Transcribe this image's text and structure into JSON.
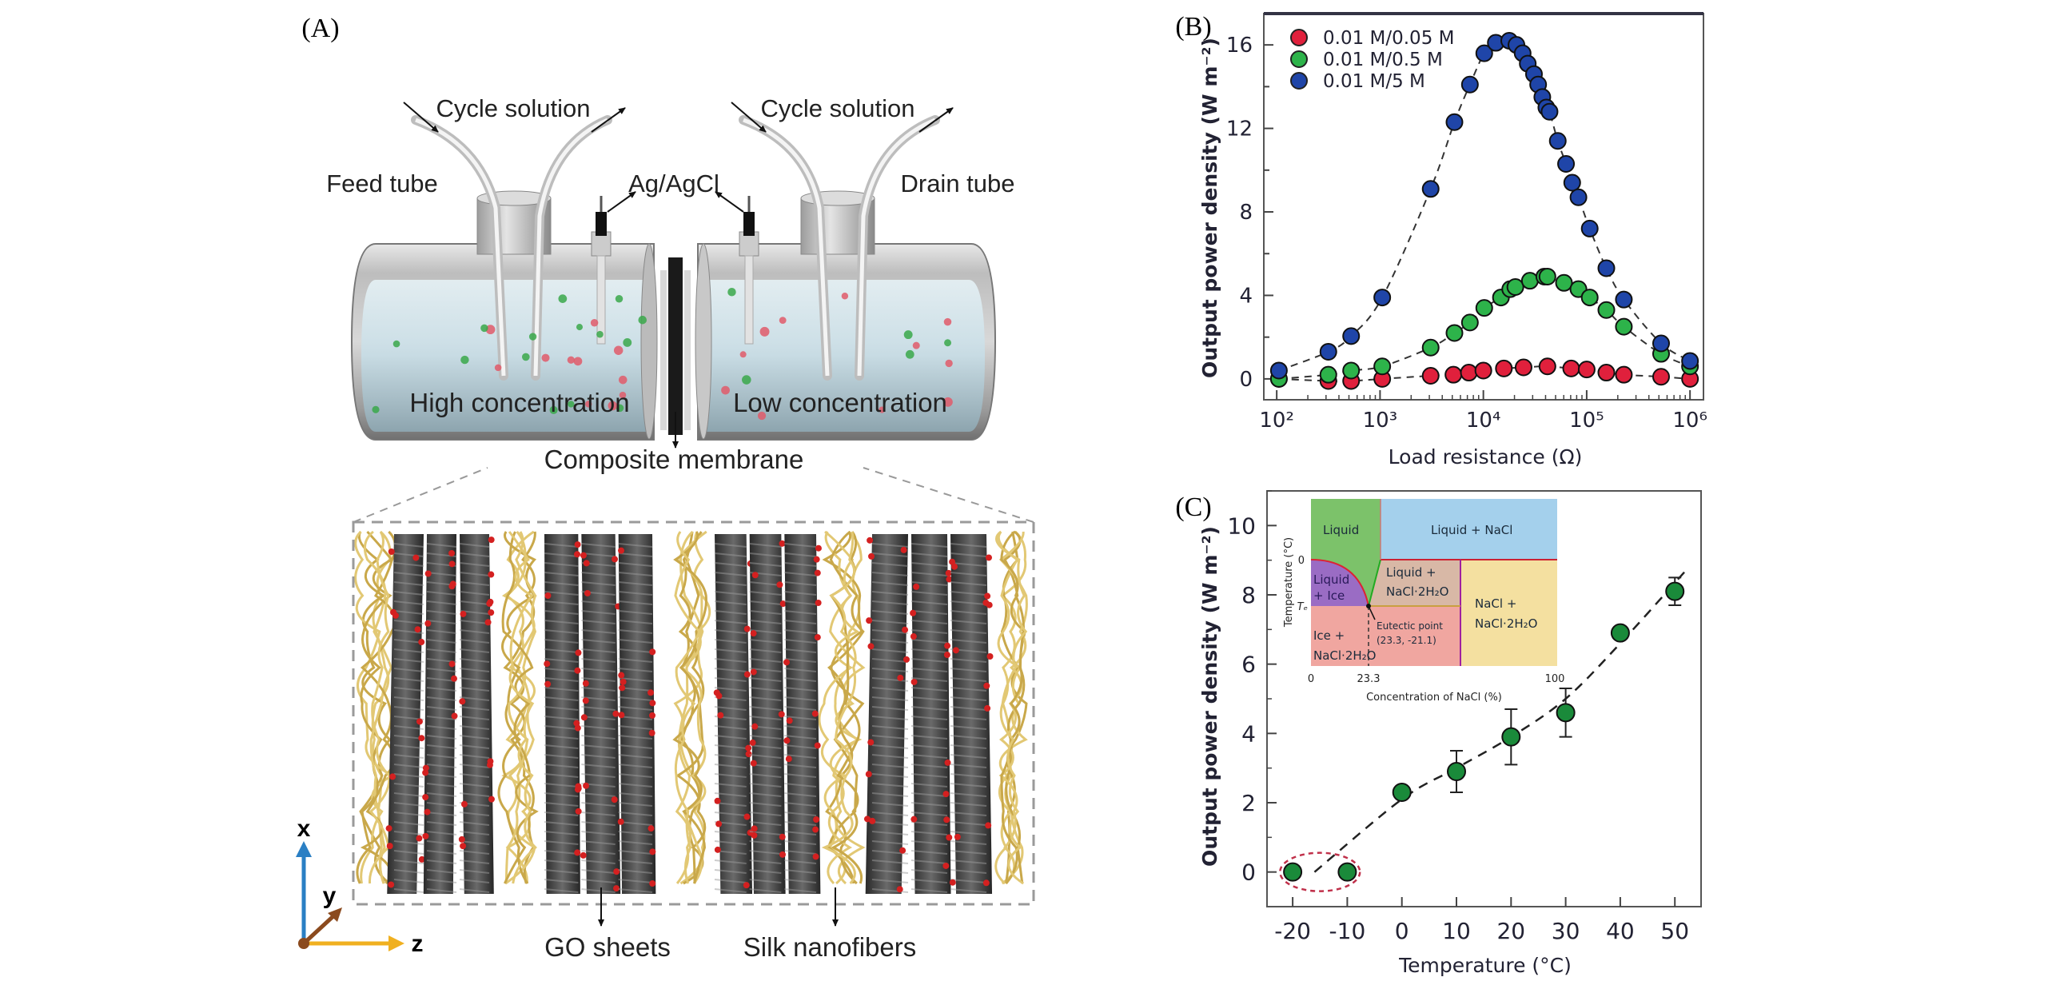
{
  "panel_labels": {
    "a": "(A)",
    "b": "(B)",
    "c": "(C)"
  },
  "diagram": {
    "cycle_solution_left": "Cycle solution",
    "cycle_solution_right": "Cycle solution",
    "feed_tube": "Feed tube",
    "electrode": "Ag/AgCl",
    "drain_tube": "Drain tube",
    "high_concentration": "High concentration",
    "low_concentration": "Low concentration",
    "composite_membrane": "Composite membrane",
    "go_sheets": "GO sheets",
    "silk_nanofibers": "Silk nanofibers",
    "axes": {
      "x": "x",
      "y": "y",
      "z": "z"
    },
    "colors": {
      "silk": "#c9a84a",
      "go": "#3a3a3a",
      "oxygen": "#d42020",
      "cation_red": "#e05a6a",
      "anion_green": "#3aa84a",
      "axis_x": "#2a7fc4",
      "axis_y": "#8b4a1e",
      "axis_z": "#f0b020"
    }
  },
  "chart_data": [
    {
      "type": "scatter",
      "panel": "(B)",
      "xlabel": "Load resistance (Ω)",
      "ylabel": "Output power density (W m⁻²)",
      "xscale": "log",
      "xlim": [
        75,
        1350000
      ],
      "ylim": [
        -1.0,
        17.5
      ],
      "xticks": [
        100,
        1000,
        10000,
        100000,
        1000000
      ],
      "xtick_labels": [
        "10²",
        "10³",
        "10⁴",
        "10⁵",
        "10⁶"
      ],
      "yticks": [
        0,
        4,
        8,
        12,
        16
      ],
      "ytick_labels": [
        "0",
        "4",
        "8",
        "12",
        "16"
      ],
      "grid": false,
      "legend": "top-left",
      "fit_lines": "dashed",
      "series": [
        {
          "name": "0.01 M/0.05 M",
          "color": "#e0203c",
          "x": [
            105,
            316,
            525,
            1050,
            3090,
            5130,
            7240,
            10000,
            15800,
            24500,
            41700,
            70800,
            100000,
            155000,
            229000,
            525000,
            1000000
          ],
          "y": [
            0,
            -0.1,
            -0.1,
            0,
            0.15,
            0.2,
            0.3,
            0.4,
            0.5,
            0.55,
            0.6,
            0.5,
            0.45,
            0.3,
            0.2,
            0.1,
            0.0
          ]
        },
        {
          "name": "0.01 M/0.5 M",
          "color": "#2db34a",
          "x": [
            105,
            316,
            525,
            1050,
            3090,
            5250,
            7410,
            10200,
            14800,
            18200,
            20400,
            28200,
            38900,
            41700,
            60300,
            83200,
            107000,
            155000,
            229000,
            525000,
            1000000
          ],
          "y": [
            0,
            0.2,
            0.4,
            0.6,
            1.5,
            2.2,
            2.7,
            3.4,
            3.9,
            4.3,
            4.4,
            4.7,
            4.9,
            4.9,
            4.6,
            4.3,
            3.9,
            3.3,
            2.5,
            1.2,
            0.6
          ]
        },
        {
          "name": "0.01 M/5 M",
          "color": "#1f45a8",
          "x": [
            105,
            316,
            525,
            1050,
            3090,
            5250,
            7410,
            10200,
            13200,
            17800,
            20900,
            24000,
            26900,
            30900,
            33900,
            37200,
            40700,
            43700,
            52500,
            63100,
            72400,
            83200,
            107000,
            155000,
            229000,
            525000,
            1000000
          ],
          "y": [
            0.4,
            1.3,
            2.05,
            3.9,
            9.1,
            12.3,
            14.1,
            15.6,
            16.1,
            16.2,
            16.0,
            15.6,
            15.1,
            14.6,
            14.1,
            13.5,
            13.0,
            12.8,
            11.4,
            10.3,
            9.4,
            8.7,
            7.2,
            5.3,
            3.8,
            1.7,
            0.86
          ]
        }
      ]
    },
    {
      "type": "scatter",
      "panel": "(C)",
      "xlabel": "Temperature (°C)",
      "ylabel": "Output power density (W m⁻²)",
      "xlim": [
        -24.7,
        54.8
      ],
      "ylim": [
        -1.0,
        11.0
      ],
      "xticks": [
        -20,
        -10,
        0,
        10,
        20,
        30,
        40,
        50
      ],
      "xtick_labels": [
        "-20",
        "-10",
        "0",
        "10",
        "20",
        "30",
        "40",
        "50"
      ],
      "yticks": [
        0,
        2,
        4,
        6,
        8,
        10
      ],
      "ytick_labels": [
        "0",
        "2",
        "4",
        "6",
        "8",
        "10"
      ],
      "grid": false,
      "fit_lines": "dashed",
      "highlight": "dashed red ellipse around -20 and -10 °C points",
      "series": [
        {
          "color": "#1a8a3a",
          "x": [
            -20,
            -10,
            0,
            10,
            20,
            30,
            40,
            50
          ],
          "y": [
            0,
            0,
            2.3,
            2.9,
            3.9,
            4.6,
            6.9,
            8.1
          ],
          "error": [
            0,
            0,
            0.1,
            0.6,
            0.8,
            0.7,
            0.15,
            0.4
          ]
        }
      ],
      "inset": {
        "type": "phase-diagram",
        "xlabel": "Concentration of NaCl (%)",
        "ylabel": "Temperature (°C)",
        "xtick_labels": [
          "0",
          "23.3",
          "100"
        ],
        "ytick_labels": [
          "0",
          "Tₑ"
        ],
        "regions": [
          {
            "label": "Liquid",
            "color": "#7cc26a"
          },
          {
            "label": "Liquid + NaCl",
            "color": "#a4d0ec"
          },
          {
            "label_1": "Liquid",
            "label_2": "+ Ice",
            "color": "#9a6cc4"
          },
          {
            "label_1": "Liquid +",
            "label_2": "NaCl·2H₂O",
            "color": "#d8b8a6"
          },
          {
            "label_1": "NaCl +",
            "label_2": "NaCl·2H₂O",
            "color": "#f4e0a0"
          },
          {
            "label_1": "Ice +",
            "label_2": "NaCl·2H₂O",
            "color": "#f0a6a0"
          }
        ],
        "eutectic_label": "Eutectic point",
        "eutectic_coords": "(23.3, -21.1)"
      }
    }
  ]
}
